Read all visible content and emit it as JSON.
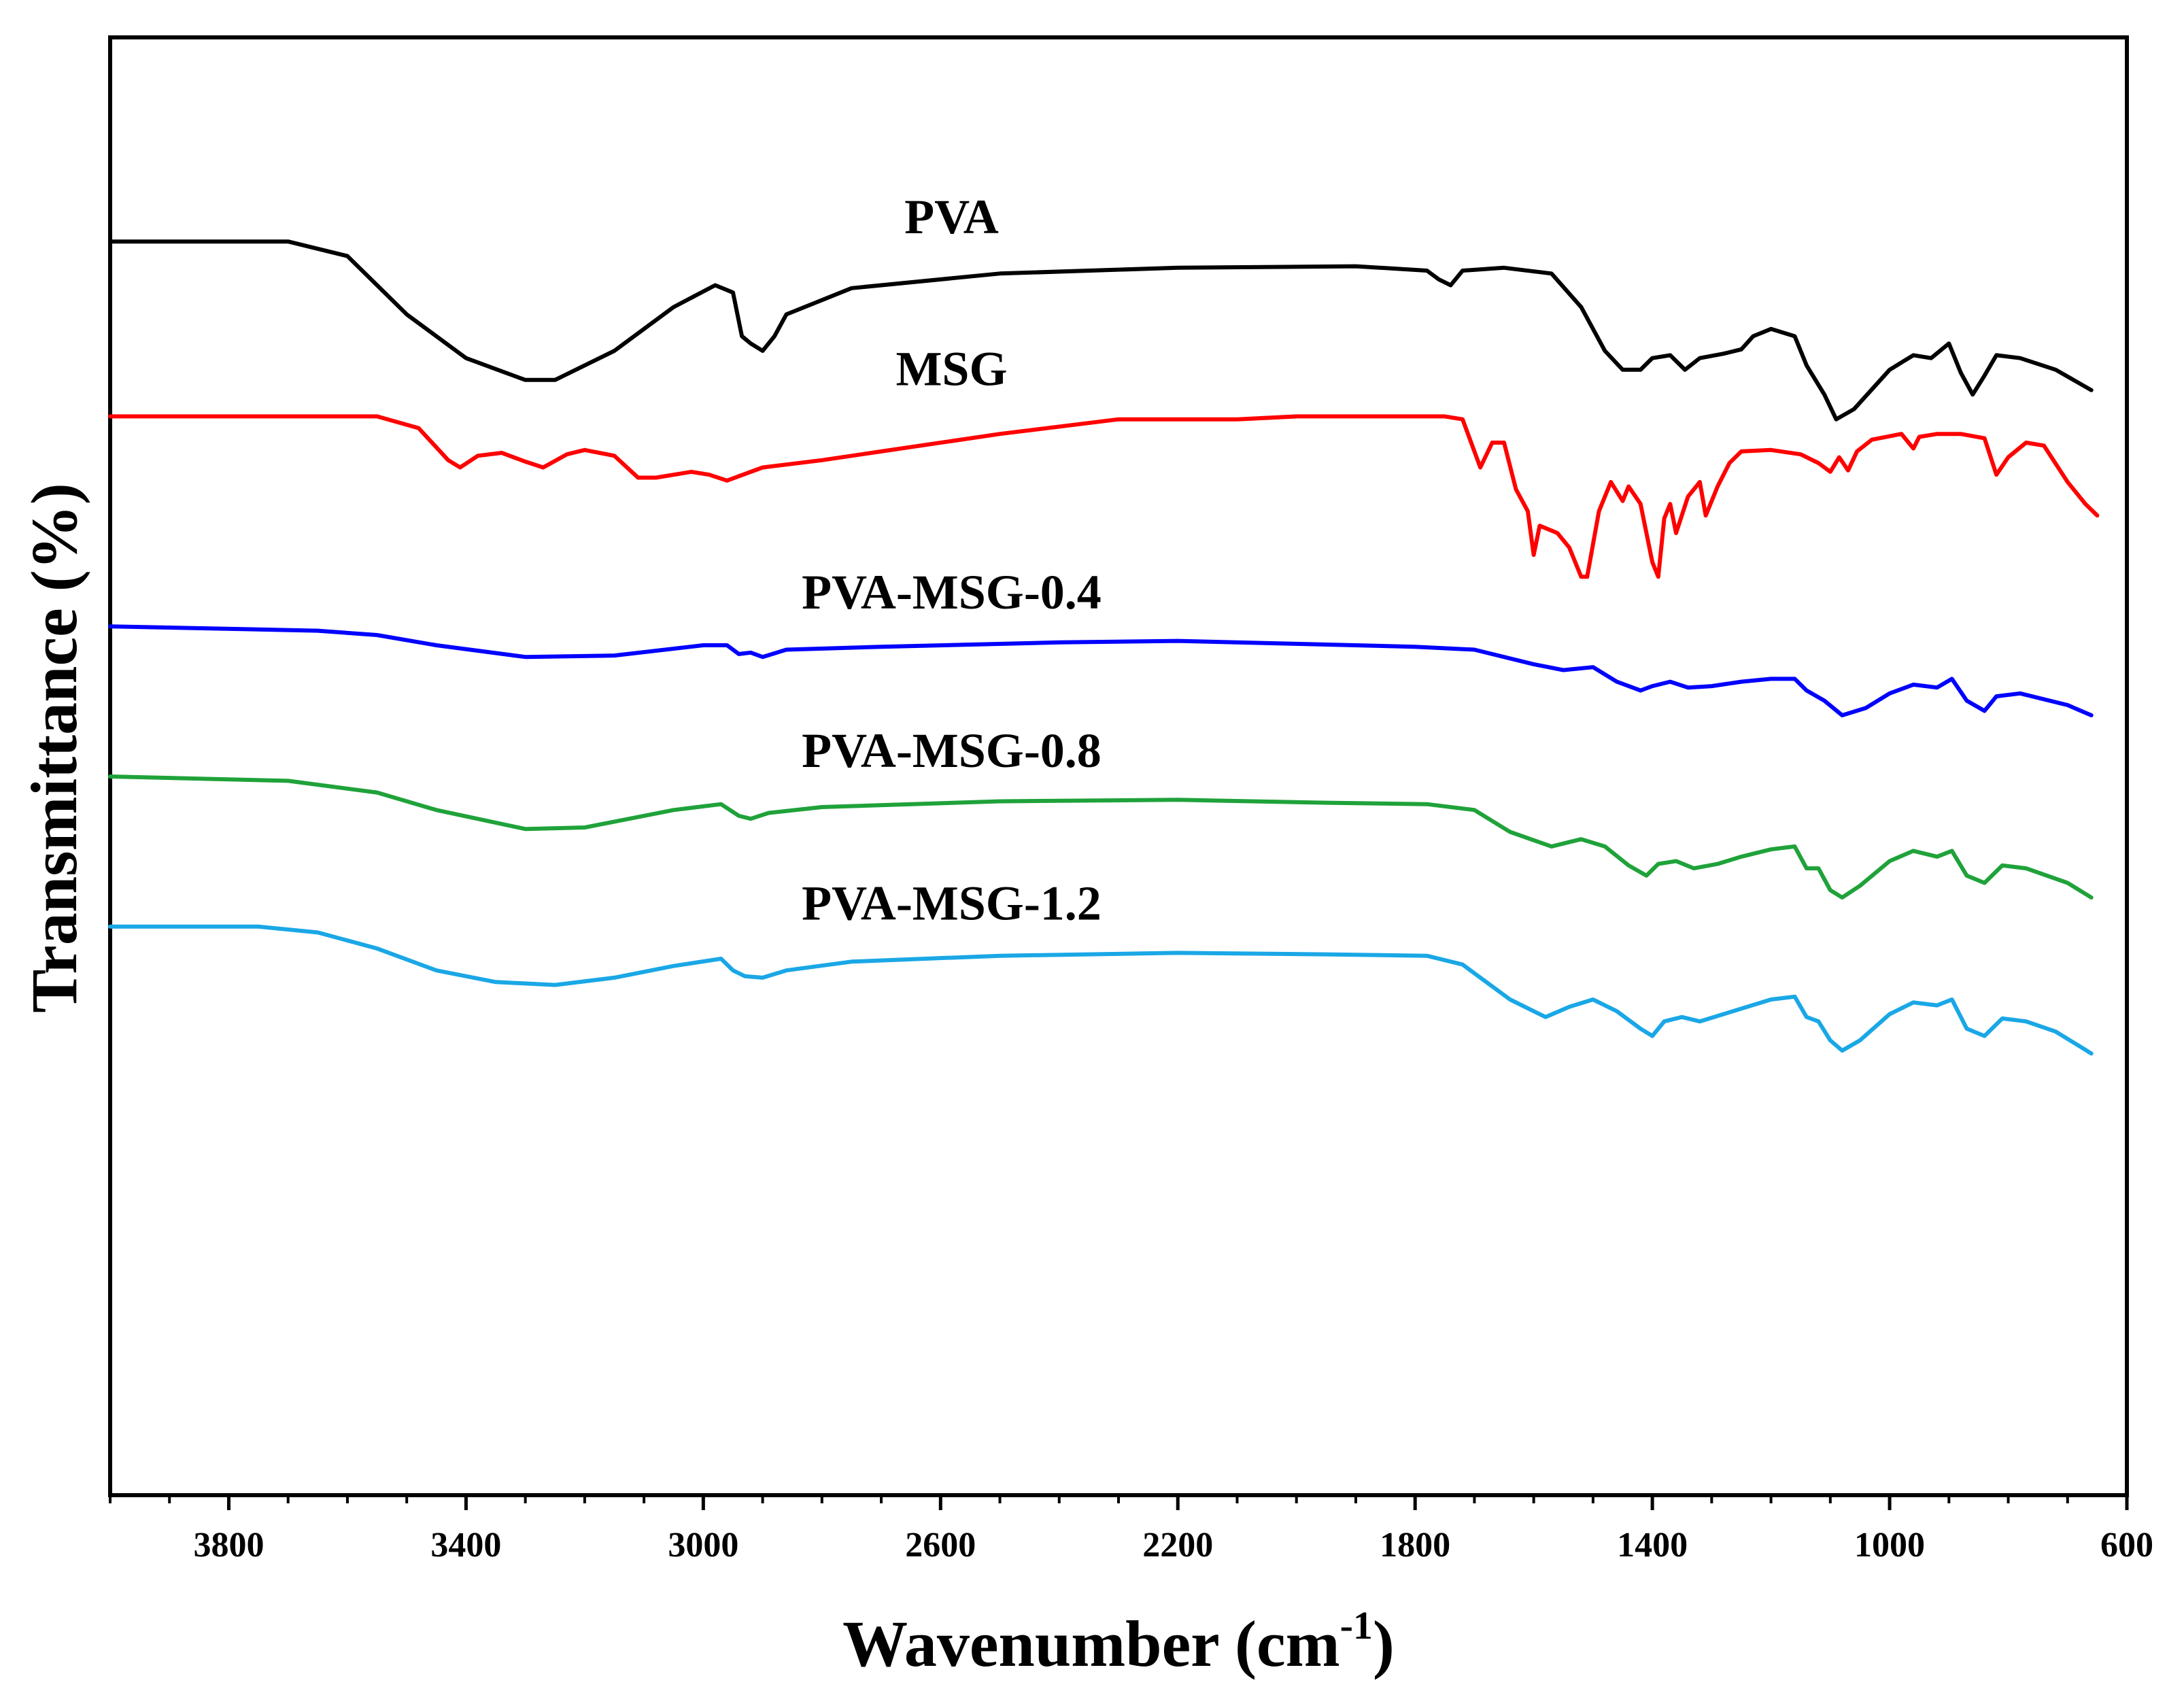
{
  "chart_data": {
    "type": "line",
    "xlabel": "Wavenumber (cm",
    "xlabel_sup": "-1",
    "xlabel_close": ")",
    "ylabel": "Transmittance (%)",
    "xlim": [
      4000,
      600
    ],
    "x_reversed": true,
    "ylim": [
      0,
      10
    ],
    "grid": false,
    "legend": "inline labels above each curve",
    "x_ticks": [
      3800,
      3400,
      3000,
      2600,
      2200,
      1800,
      1400,
      1000,
      600
    ],
    "x_tick_labels": [
      "3800",
      "3400",
      "3000",
      "2600",
      "2200",
      "1800",
      "1400",
      "1000",
      "600"
    ],
    "series": [
      {
        "name": "PVA",
        "color": "#000000",
        "label_x": 2100,
        "points": [
          [
            4000,
            8.6
          ],
          [
            3700,
            8.6
          ],
          [
            3600,
            8.5
          ],
          [
            3500,
            8.1
          ],
          [
            3400,
            7.8
          ],
          [
            3300,
            7.65
          ],
          [
            3250,
            7.65
          ],
          [
            3150,
            7.85
          ],
          [
            3050,
            8.15
          ],
          [
            2980,
            8.3
          ],
          [
            2950,
            8.25
          ],
          [
            2935,
            7.95
          ],
          [
            2920,
            7.9
          ],
          [
            2900,
            7.85
          ],
          [
            2880,
            7.95
          ],
          [
            2860,
            8.1
          ],
          [
            2750,
            8.28
          ],
          [
            2500,
            8.38
          ],
          [
            2200,
            8.42
          ],
          [
            1900,
            8.43
          ],
          [
            1780,
            8.4
          ],
          [
            1760,
            8.34
          ],
          [
            1740,
            8.3
          ],
          [
            1720,
            8.4
          ],
          [
            1650,
            8.42
          ],
          [
            1570,
            8.38
          ],
          [
            1520,
            8.15
          ],
          [
            1480,
            7.85
          ],
          [
            1450,
            7.72
          ],
          [
            1420,
            7.72
          ],
          [
            1400,
            7.8
          ],
          [
            1370,
            7.82
          ],
          [
            1345,
            7.72
          ],
          [
            1320,
            7.8
          ],
          [
            1280,
            7.83
          ],
          [
            1250,
            7.86
          ],
          [
            1230,
            7.95
          ],
          [
            1200,
            8.0
          ],
          [
            1160,
            7.95
          ],
          [
            1140,
            7.75
          ],
          [
            1110,
            7.55
          ],
          [
            1090,
            7.38
          ],
          [
            1060,
            7.45
          ],
          [
            1000,
            7.72
          ],
          [
            960,
            7.82
          ],
          [
            930,
            7.8
          ],
          [
            900,
            7.9
          ],
          [
            880,
            7.7
          ],
          [
            860,
            7.55
          ],
          [
            840,
            7.68
          ],
          [
            820,
            7.82
          ],
          [
            780,
            7.8
          ],
          [
            720,
            7.72
          ],
          [
            660,
            7.58
          ]
        ]
      },
      {
        "name": "MSG",
        "color": "#ff0000",
        "label_x": 2100,
        "points": [
          [
            4000,
            7.4
          ],
          [
            3550,
            7.4
          ],
          [
            3480,
            7.32
          ],
          [
            3430,
            7.1
          ],
          [
            3410,
            7.05
          ],
          [
            3380,
            7.13
          ],
          [
            3340,
            7.15
          ],
          [
            3300,
            7.09
          ],
          [
            3270,
            7.05
          ],
          [
            3230,
            7.14
          ],
          [
            3200,
            7.17
          ],
          [
            3150,
            7.13
          ],
          [
            3110,
            6.98
          ],
          [
            3080,
            6.98
          ],
          [
            3020,
            7.02
          ],
          [
            2990,
            7.0
          ],
          [
            2960,
            6.96
          ],
          [
            2900,
            7.05
          ],
          [
            2800,
            7.1
          ],
          [
            2700,
            7.16
          ],
          [
            2500,
            7.28
          ],
          [
            2300,
            7.38
          ],
          [
            2100,
            7.38
          ],
          [
            2000,
            7.4
          ],
          [
            1750,
            7.4
          ],
          [
            1720,
            7.38
          ],
          [
            1690,
            7.05
          ],
          [
            1670,
            7.22
          ],
          [
            1650,
            7.22
          ],
          [
            1630,
            6.9
          ],
          [
            1610,
            6.75
          ],
          [
            1600,
            6.45
          ],
          [
            1590,
            6.65
          ],
          [
            1560,
            6.6
          ],
          [
            1540,
            6.5
          ],
          [
            1520,
            6.3
          ],
          [
            1510,
            6.3
          ],
          [
            1490,
            6.75
          ],
          [
            1470,
            6.95
          ],
          [
            1450,
            6.82
          ],
          [
            1440,
            6.92
          ],
          [
            1420,
            6.8
          ],
          [
            1400,
            6.4
          ],
          [
            1390,
            6.3
          ],
          [
            1380,
            6.7
          ],
          [
            1370,
            6.8
          ],
          [
            1360,
            6.6
          ],
          [
            1340,
            6.85
          ],
          [
            1320,
            6.95
          ],
          [
            1310,
            6.72
          ],
          [
            1290,
            6.92
          ],
          [
            1270,
            7.08
          ],
          [
            1250,
            7.16
          ],
          [
            1200,
            7.17
          ],
          [
            1150,
            7.14
          ],
          [
            1120,
            7.08
          ],
          [
            1100,
            7.02
          ],
          [
            1085,
            7.12
          ],
          [
            1070,
            7.03
          ],
          [
            1055,
            7.16
          ],
          [
            1030,
            7.24
          ],
          [
            980,
            7.28
          ],
          [
            960,
            7.18
          ],
          [
            950,
            7.26
          ],
          [
            920,
            7.28
          ],
          [
            880,
            7.28
          ],
          [
            840,
            7.25
          ],
          [
            820,
            7.0
          ],
          [
            800,
            7.12
          ],
          [
            770,
            7.22
          ],
          [
            740,
            7.2
          ],
          [
            700,
            6.95
          ],
          [
            670,
            6.8
          ],
          [
            650,
            6.72
          ]
        ]
      },
      {
        "name": "PVA-MSG-0.4",
        "color": "#0000ff",
        "label_x": 2100,
        "points": [
          [
            4000,
            5.96
          ],
          [
            3650,
            5.93
          ],
          [
            3550,
            5.9
          ],
          [
            3450,
            5.83
          ],
          [
            3300,
            5.75
          ],
          [
            3150,
            5.76
          ],
          [
            3000,
            5.83
          ],
          [
            2960,
            5.83
          ],
          [
            2940,
            5.77
          ],
          [
            2920,
            5.78
          ],
          [
            2900,
            5.75
          ],
          [
            2860,
            5.8
          ],
          [
            2700,
            5.82
          ],
          [
            2400,
            5.85
          ],
          [
            2200,
            5.86
          ],
          [
            2000,
            5.84
          ],
          [
            1800,
            5.82
          ],
          [
            1700,
            5.8
          ],
          [
            1600,
            5.7
          ],
          [
            1550,
            5.66
          ],
          [
            1500,
            5.68
          ],
          [
            1460,
            5.58
          ],
          [
            1420,
            5.52
          ],
          [
            1400,
            5.55
          ],
          [
            1370,
            5.58
          ],
          [
            1340,
            5.54
          ],
          [
            1300,
            5.55
          ],
          [
            1250,
            5.58
          ],
          [
            1200,
            5.6
          ],
          [
            1160,
            5.6
          ],
          [
            1140,
            5.52
          ],
          [
            1110,
            5.45
          ],
          [
            1080,
            5.35
          ],
          [
            1040,
            5.4
          ],
          [
            1000,
            5.5
          ],
          [
            960,
            5.56
          ],
          [
            920,
            5.54
          ],
          [
            895,
            5.6
          ],
          [
            870,
            5.45
          ],
          [
            840,
            5.38
          ],
          [
            820,
            5.48
          ],
          [
            780,
            5.5
          ],
          [
            700,
            5.42
          ],
          [
            660,
            5.35
          ]
        ]
      },
      {
        "name": "PVA-MSG-0.8",
        "color": "#1fa23a",
        "label_x": 2100,
        "points": [
          [
            4000,
            4.93
          ],
          [
            3700,
            4.9
          ],
          [
            3550,
            4.82
          ],
          [
            3450,
            4.7
          ],
          [
            3300,
            4.57
          ],
          [
            3200,
            4.58
          ],
          [
            3050,
            4.7
          ],
          [
            2970,
            4.74
          ],
          [
            2940,
            4.66
          ],
          [
            2920,
            4.64
          ],
          [
            2890,
            4.68
          ],
          [
            2800,
            4.72
          ],
          [
            2500,
            4.76
          ],
          [
            2200,
            4.77
          ],
          [
            1950,
            4.75
          ],
          [
            1780,
            4.74
          ],
          [
            1700,
            4.7
          ],
          [
            1640,
            4.55
          ],
          [
            1570,
            4.45
          ],
          [
            1520,
            4.5
          ],
          [
            1480,
            4.45
          ],
          [
            1440,
            4.32
          ],
          [
            1410,
            4.25
          ],
          [
            1390,
            4.33
          ],
          [
            1360,
            4.35
          ],
          [
            1330,
            4.3
          ],
          [
            1290,
            4.33
          ],
          [
            1250,
            4.38
          ],
          [
            1200,
            4.43
          ],
          [
            1160,
            4.45
          ],
          [
            1140,
            4.3
          ],
          [
            1120,
            4.3
          ],
          [
            1100,
            4.15
          ],
          [
            1080,
            4.1
          ],
          [
            1050,
            4.18
          ],
          [
            1000,
            4.35
          ],
          [
            960,
            4.42
          ],
          [
            920,
            4.38
          ],
          [
            895,
            4.42
          ],
          [
            870,
            4.25
          ],
          [
            840,
            4.2
          ],
          [
            810,
            4.32
          ],
          [
            770,
            4.3
          ],
          [
            700,
            4.2
          ],
          [
            660,
            4.1
          ]
        ]
      },
      {
        "name": "PVA-MSG-1.2",
        "color": "#1aa7e6",
        "label_x": 2100,
        "points": [
          [
            4000,
            3.9
          ],
          [
            3750,
            3.9
          ],
          [
            3650,
            3.86
          ],
          [
            3550,
            3.75
          ],
          [
            3450,
            3.6
          ],
          [
            3350,
            3.52
          ],
          [
            3250,
            3.5
          ],
          [
            3150,
            3.55
          ],
          [
            3050,
            3.63
          ],
          [
            2970,
            3.68
          ],
          [
            2950,
            3.6
          ],
          [
            2930,
            3.56
          ],
          [
            2900,
            3.55
          ],
          [
            2860,
            3.6
          ],
          [
            2750,
            3.66
          ],
          [
            2500,
            3.7
          ],
          [
            2200,
            3.72
          ],
          [
            1950,
            3.71
          ],
          [
            1780,
            3.7
          ],
          [
            1720,
            3.64
          ],
          [
            1680,
            3.52
          ],
          [
            1640,
            3.4
          ],
          [
            1580,
            3.28
          ],
          [
            1540,
            3.35
          ],
          [
            1500,
            3.4
          ],
          [
            1460,
            3.32
          ],
          [
            1420,
            3.2
          ],
          [
            1400,
            3.15
          ],
          [
            1380,
            3.25
          ],
          [
            1350,
            3.28
          ],
          [
            1320,
            3.25
          ],
          [
            1280,
            3.3
          ],
          [
            1240,
            3.35
          ],
          [
            1200,
            3.4
          ],
          [
            1160,
            3.42
          ],
          [
            1140,
            3.28
          ],
          [
            1120,
            3.25
          ],
          [
            1100,
            3.12
          ],
          [
            1080,
            3.05
          ],
          [
            1050,
            3.12
          ],
          [
            1000,
            3.3
          ],
          [
            960,
            3.38
          ],
          [
            920,
            3.36
          ],
          [
            895,
            3.4
          ],
          [
            870,
            3.2
          ],
          [
            840,
            3.15
          ],
          [
            810,
            3.27
          ],
          [
            770,
            3.25
          ],
          [
            720,
            3.18
          ],
          [
            680,
            3.08
          ],
          [
            660,
            3.03
          ]
        ]
      }
    ]
  }
}
